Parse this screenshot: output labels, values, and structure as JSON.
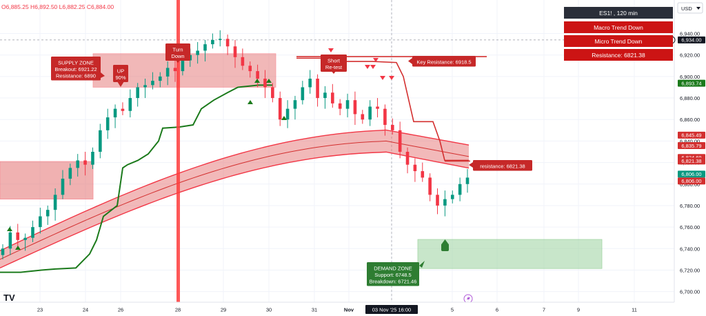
{
  "ohlc_bar": {
    "text": "O6,885.25  H6,892.50  L6,882.25  C6,884.00"
  },
  "currency": "USD",
  "info_panel": {
    "symbol_timeframe": "ES1! , 120 min",
    "macro_trend": "Macro Trend Down",
    "micro_trend": "Micro Trend Down",
    "resistance": "Resistance: 6821.38"
  },
  "annotations": {
    "supply_zone": [
      "SUPPLY ZONE",
      "Breakout: 6921.22",
      "Resistance: 6890"
    ],
    "up_label": [
      "UP",
      "90%"
    ],
    "turn_down": [
      "Turn",
      "Down"
    ],
    "short_retest": [
      "Short",
      "Re-test"
    ],
    "key_resistance": "Key Resistance: 6918.5",
    "resistance_right": "resistance: 6821.38",
    "demand_zone": [
      "DEMAND ZONE",
      "Support: 6748.5",
      "Breakdown: 6721.46"
    ]
  },
  "price_tags": [
    {
      "value": "6,934.00",
      "style": "dark"
    },
    {
      "value": "6,893.74",
      "style": "green"
    },
    {
      "value": "6,845.49",
      "style": "red"
    },
    {
      "value": "6,835.79",
      "style": "red"
    },
    {
      "value": "6,824.69",
      "style": "red"
    },
    {
      "value": "6,821.38",
      "style": "red"
    },
    {
      "value": "6,806.00",
      "style": "teal"
    },
    {
      "value": "6,806.00",
      "style": "red"
    }
  ],
  "watermark": "TV",
  "colors": {
    "up": "#089981",
    "down": "#f23645",
    "zone_red": "#e57373",
    "zone_green": "#a5d6a7",
    "trend_green": "#1b7a1b",
    "label_red": "#c62828"
  },
  "chart_data": {
    "type": "candlestick",
    "title": "ES1!, 120 min",
    "ylim": [
      6694,
      6966
    ],
    "y_ticks": [
      "6,940.00",
      "6,920.00",
      "6,900.00",
      "6,880.00",
      "6,860.00",
      "6,840.00",
      "6,820.00",
      "6,800.00",
      "6,780.00",
      "6,760.00",
      "6,740.00",
      "6,720.00",
      "6,700.00"
    ],
    "x_ticks": [
      "23",
      "24",
      "26",
      "28",
      "29",
      "30",
      "31",
      "Nov",
      "03 Nov '25  16:00",
      "5",
      "6",
      "7",
      "9",
      "11"
    ],
    "candles_note": "price path sampled ~2h bars from Oct 22 to Nov 5 2025",
    "closes": [
      6740,
      6755,
      6748,
      6750,
      6760,
      6770,
      6776,
      6790,
      6805,
      6815,
      6822,
      6818,
      6830,
      6850,
      6862,
      6870,
      6868,
      6880,
      6890,
      6892,
      6896,
      6900,
      6908,
      6905,
      6915,
      6920,
      6924,
      6930,
      6934,
      6935,
      6928,
      6918,
      6910,
      6905,
      6898,
      6890,
      6880,
      6860,
      6870,
      6878,
      6890,
      6898,
      6880,
      6885,
      6875,
      6870,
      6878,
      6865,
      6860,
      6872,
      6870,
      6855,
      6850,
      6830,
      6818,
      6812,
      6806,
      6790,
      6780,
      6786,
      6790,
      6800,
      6806
    ],
    "key_resistance": 6918.5,
    "resistance": 6821.38,
    "demand_zone": [
      6721.46,
      6748.5
    ],
    "supply_zone": [
      6890,
      6921.22
    ]
  }
}
